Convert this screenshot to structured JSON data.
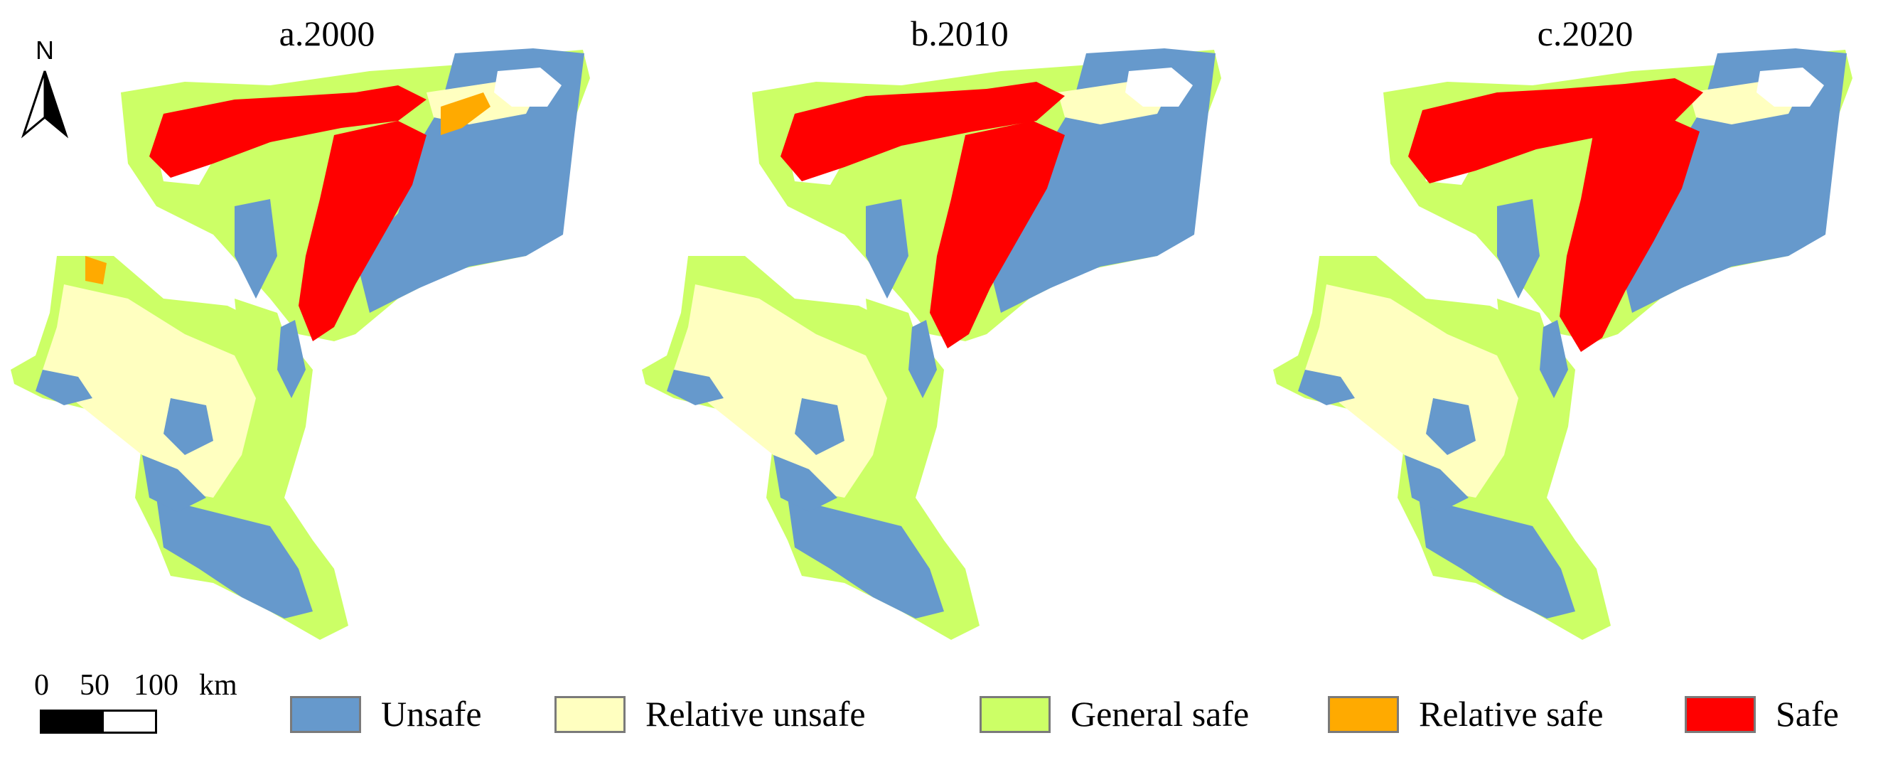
{
  "panels": [
    {
      "title": "a.2000"
    },
    {
      "title": "b.2010"
    },
    {
      "title": "c.2020"
    }
  ],
  "north_arrow": {
    "letter": "N"
  },
  "scale_bar": {
    "labels": [
      "0",
      "50",
      "100"
    ],
    "unit": "km"
  },
  "legend": [
    {
      "label": "Unsafe",
      "color": "#6699cc"
    },
    {
      "label": "Relative unsafe",
      "color": "#ffffc0"
    },
    {
      "label": "General safe",
      "color": "#ccff66"
    },
    {
      "label": "Relative safe",
      "color": "#ffaa00"
    },
    {
      "label": "Safe",
      "color": "#ff0000"
    }
  ]
}
